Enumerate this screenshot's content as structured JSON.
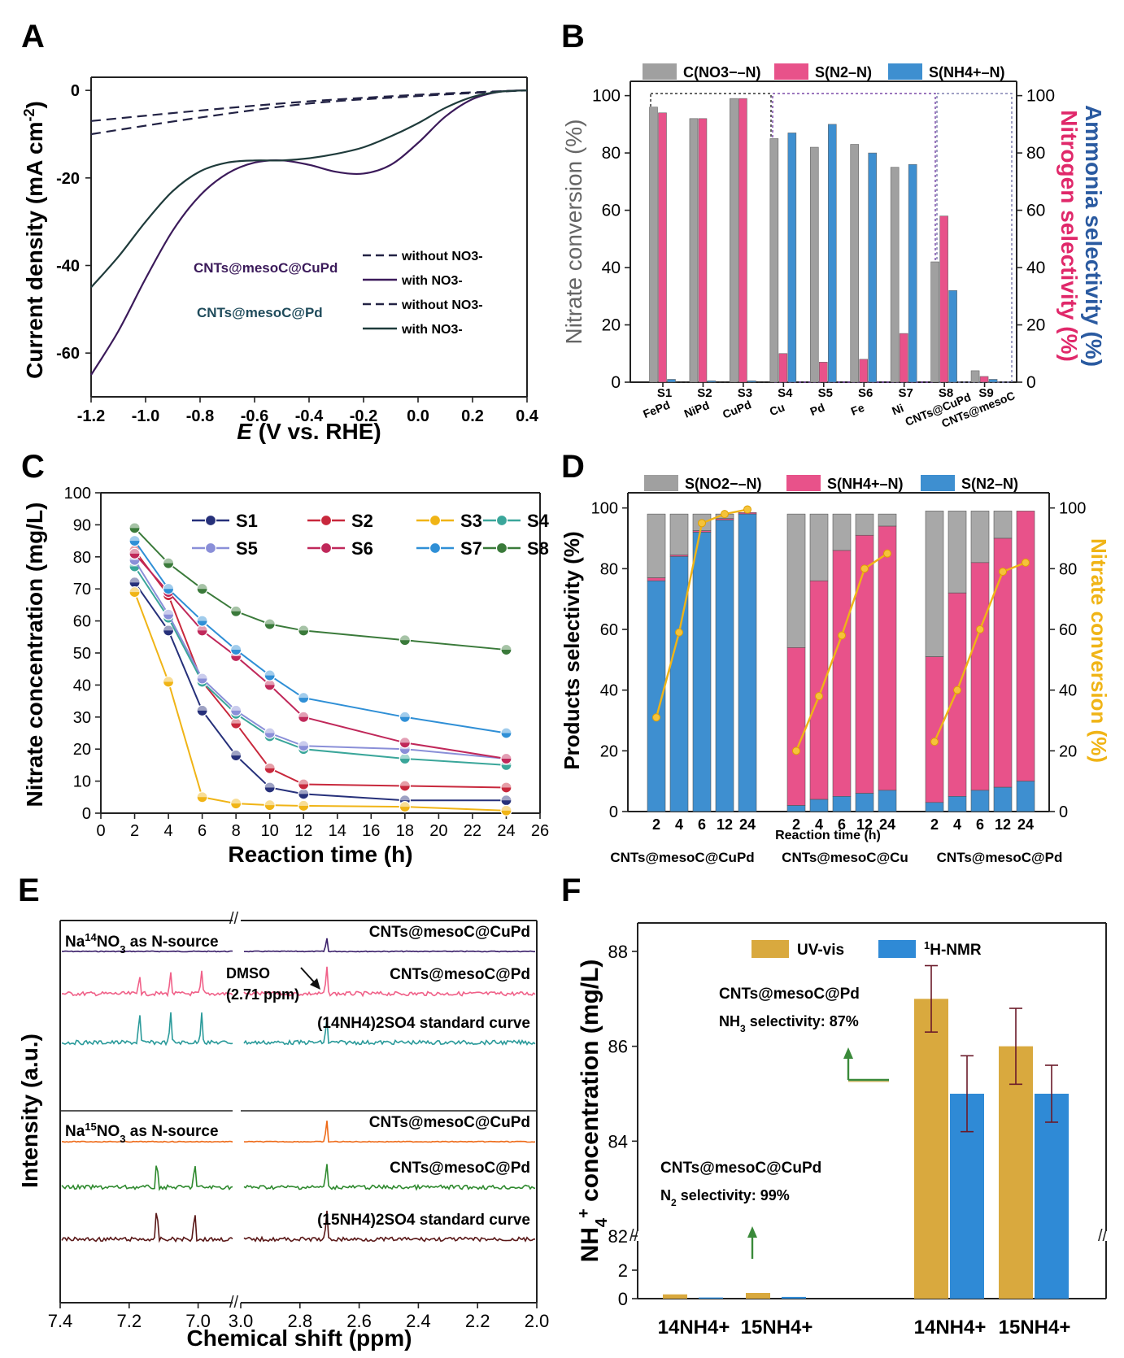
{
  "chart_data": [
    {
      "panel": "A",
      "type": "line",
      "xlabel": "E (V vs. RHE)",
      "ylabel": "Current density (mA cm-2)",
      "xlim": [
        -1.2,
        0.4
      ],
      "ylim": [
        -70,
        3
      ],
      "xticks": [
        "-1.2",
        "-1.0",
        "-0.8",
        "-0.6",
        "-0.4",
        "-0.2",
        "0.0",
        "0.2",
        "0.4"
      ],
      "yticks": [
        "0",
        "-20",
        "-40",
        "-60"
      ],
      "legend": {
        "cupd_label": "CNTs@mesoC@CuPd",
        "pd_label": "CNTs@mesoC@Pd",
        "without": "without NO3-",
        "with": "with NO3-"
      },
      "series": [
        {
          "name": "CuPd without NO3-",
          "color": "#222244",
          "dash": true,
          "x": [
            -1.2,
            -0.8,
            -0.4,
            0.0,
            0.3,
            0.4
          ],
          "y": [
            -7,
            -4.6,
            -2.5,
            -1.0,
            -0.2,
            0
          ]
        },
        {
          "name": "CuPd with NO3-",
          "color": "#3b1a5a",
          "dash": false,
          "x": [
            -1.2,
            -1.1,
            -1.0,
            -0.9,
            -0.8,
            -0.7,
            -0.6,
            -0.5,
            -0.4,
            -0.3,
            -0.2,
            -0.1,
            0.0,
            0.1,
            0.2,
            0.3,
            0.4
          ],
          "y": [
            -65,
            -55,
            -43,
            -32,
            -24,
            -19,
            -16.5,
            -16,
            -17,
            -18.6,
            -19,
            -17,
            -12,
            -6,
            -2,
            -0.3,
            0
          ]
        },
        {
          "name": "Pd without NO3-",
          "color": "#222244",
          "dash": true,
          "x": [
            -1.2,
            -0.8,
            -0.4,
            0.0,
            0.3,
            0.4
          ],
          "y": [
            -10,
            -6.2,
            -3.0,
            -1.3,
            -0.3,
            0
          ]
        },
        {
          "name": "Pd with NO3-",
          "color": "#1f3b3b",
          "dash": false,
          "x": [
            -1.2,
            -1.1,
            -1.0,
            -0.9,
            -0.8,
            -0.7,
            -0.6,
            -0.5,
            -0.4,
            -0.3,
            -0.2,
            -0.1,
            0.0,
            0.1,
            0.2,
            0.3,
            0.4
          ],
          "y": [
            -45,
            -38,
            -30,
            -23,
            -18.5,
            -16.5,
            -16,
            -16,
            -15.5,
            -14.5,
            -13,
            -10.5,
            -7.5,
            -4,
            -1.5,
            -0.3,
            0
          ]
        }
      ]
    },
    {
      "panel": "B",
      "type": "bar",
      "ylabel_left": "Nitrate conversion (%)",
      "ylabel_right_1": "Ammonia selectivity (%)",
      "ylabel_right_2": "Nitrogen selectivity (%)",
      "ylim": [
        0,
        105
      ],
      "yticks": [
        "0",
        "20",
        "40",
        "60",
        "80",
        "100"
      ],
      "legend": {
        "conversion": "C(NO3−–N)",
        "n2": "S(N2–N)",
        "nh4": "S(NH4+–N)"
      },
      "categories": [
        "S1",
        "S2",
        "S3",
        "S4",
        "S5",
        "S6",
        "S7",
        "S8",
        "S9"
      ],
      "sample_labels": [
        "FePd",
        "NiPd",
        "CuPd",
        "Cu",
        "Pd",
        "Fe",
        "Ni",
        "CNTs@CuPd",
        "CNTs@mesoC"
      ],
      "series": [
        {
          "name": "C(NO3−–N)",
          "color": "#a0a0a0",
          "values": [
            96,
            92,
            99,
            85,
            82,
            83,
            75,
            42,
            4
          ]
        },
        {
          "name": "S(N2–N)",
          "color": "#e8528a",
          "values": [
            94,
            92,
            99,
            10,
            7,
            8,
            17,
            58,
            2
          ]
        },
        {
          "name": "S(NH4+–N)",
          "color": "#3e8fd0",
          "values": [
            1,
            0.5,
            0.5,
            87,
            90,
            80,
            76,
            32,
            1
          ]
        }
      ]
    },
    {
      "panel": "C",
      "type": "line",
      "xlabel": "Reaction time (h)",
      "ylabel": "Nitrate concentration (mg/L)",
      "xlim": [
        0,
        26
      ],
      "ylim": [
        0,
        100
      ],
      "xticks": [
        "0",
        "2",
        "4",
        "6",
        "8",
        "10",
        "12",
        "14",
        "16",
        "18",
        "20",
        "22",
        "24",
        "26"
      ],
      "yticks": [
        "0",
        "10",
        "20",
        "30",
        "40",
        "50",
        "60",
        "70",
        "80",
        "90",
        "100"
      ],
      "x": [
        2,
        4,
        6,
        8,
        10,
        12,
        18,
        24
      ],
      "series": [
        {
          "name": "S1",
          "color": "#26307a",
          "values": [
            72,
            57,
            32,
            18,
            8,
            6,
            4,
            4
          ]
        },
        {
          "name": "S2",
          "color": "#c8283c",
          "values": [
            82,
            68,
            41,
            28,
            14,
            9,
            8.5,
            8
          ]
        },
        {
          "name": "S3",
          "color": "#f0b416",
          "values": [
            69,
            41,
            5,
            3,
            2.5,
            2.3,
            2,
            0.8
          ]
        },
        {
          "name": "S4",
          "color": "#3aa69a",
          "values": [
            77,
            61,
            41,
            31,
            24,
            20,
            17,
            15
          ]
        },
        {
          "name": "S5",
          "color": "#8a8fd8",
          "values": [
            79,
            62,
            42,
            32,
            25,
            21,
            20,
            17
          ]
        },
        {
          "name": "S6",
          "color": "#c0285a",
          "values": [
            81,
            69,
            57,
            49,
            40,
            30,
            22,
            17
          ]
        },
        {
          "name": "S7",
          "color": "#2f8fd6",
          "values": [
            85,
            70,
            60,
            51,
            43,
            36,
            30,
            25
          ]
        },
        {
          "name": "S8",
          "color": "#3a7a3a",
          "values": [
            89,
            78,
            70,
            63,
            59,
            57,
            54,
            51
          ]
        }
      ]
    },
    {
      "panel": "D",
      "type": "bar",
      "xlabel": "Reaction time (h)",
      "ylabel_left": "Products selectivity (%)",
      "ylabel_right": "Nitrate conversion (%)",
      "ylim": [
        0,
        105
      ],
      "yticks": [
        "0",
        "20",
        "40",
        "60",
        "80",
        "100"
      ],
      "legend": {
        "no2": "S(NO2−–N)",
        "nh4": "S(NH4+–N)",
        "n2": "S(N2–N)"
      },
      "time_labels": [
        "2",
        "4",
        "6",
        "12",
        "24"
      ],
      "groups": [
        {
          "label": "CNTs@mesoC@CuPd",
          "n2": [
            76,
            84,
            92,
            96,
            98
          ],
          "nh4": [
            1,
            0.5,
            0.5,
            0.5,
            0.5
          ],
          "total": [
            98,
            98,
            98,
            98,
            98
          ],
          "conversion": [
            31,
            59,
            95,
            98,
            99.5
          ]
        },
        {
          "label": "CNTs@mesoC@Cu",
          "n2": [
            2,
            4,
            5,
            6,
            7
          ],
          "nh4": [
            52,
            72,
            81,
            85,
            87
          ],
          "total": [
            98,
            98,
            98,
            98,
            98
          ],
          "conversion": [
            20,
            38,
            58,
            80,
            85
          ]
        },
        {
          "label": "CNTs@mesoC@Pd",
          "n2": [
            3,
            5,
            7,
            8,
            10
          ],
          "nh4": [
            48,
            67,
            75,
            82,
            89
          ],
          "total": [
            99,
            99,
            99,
            99,
            99
          ],
          "conversion": [
            23,
            40,
            60,
            79,
            82
          ]
        }
      ]
    },
    {
      "panel": "E",
      "type": "line",
      "xlabel": "Chemical shift (ppm)",
      "ylabel": "Intensity (a.u.)",
      "xticks_left": [
        "7.4",
        "7.2",
        "7.0"
      ],
      "xticks_right": [
        "3.0",
        "2.8",
        "2.6",
        "2.4",
        "2.2",
        "2.0"
      ],
      "top_source": "Na14NO3 as N-source",
      "bottom_source": "Na15NO3 as N-source",
      "dmso_label": "DMSO",
      "dmso_ppm": "(2.71 ppm)",
      "traces": [
        {
          "label": "CNTs@mesoC@CuPd",
          "color": "#3a1f6a",
          "peaks": []
        },
        {
          "label": "CNTs@mesoC@Pd",
          "color": "#f06088",
          "peaks": [
            7.17,
            7.08,
            6.99
          ]
        },
        {
          "label": "(14NH4)2SO4 standard curve",
          "color": "#2a9a9a",
          "peaks": [
            7.17,
            7.08,
            6.99
          ]
        },
        {
          "label": "CNTs@mesoC@CuPd",
          "color": "#ee6a18",
          "peaks": []
        },
        {
          "label": "CNTs@mesoC@Pd",
          "color": "#2f8a2f",
          "peaks": [
            7.12,
            7.01
          ]
        },
        {
          "label": "(15NH4)2SO4 standard curve",
          "color": "#5a1818",
          "peaks": [
            7.12,
            7.01
          ]
        }
      ]
    },
    {
      "panel": "F",
      "type": "bar",
      "ylabel": "NH4+ concentration (mg/L)",
      "legend": {
        "uv": "UV-vis",
        "nmr": "1H-NMR"
      },
      "categories": [
        "14NH4+",
        "15NH4+",
        "14NH4+",
        "15NH4+"
      ],
      "series": [
        {
          "name": "UV-vis",
          "color": "#d9a93e",
          "values": [
            0.3,
            0.4,
            87.0,
            86.0
          ],
          "errors": [
            0.2,
            0.2,
            0.7,
            0.8
          ]
        },
        {
          "name": "1H-NMR",
          "color": "#2f8ad6",
          "values": [
            0.08,
            0.12,
            85.0,
            85.0
          ],
          "errors": [
            0.05,
            0.05,
            0.8,
            0.6
          ]
        }
      ],
      "yticks_low": [
        "0",
        "2"
      ],
      "yticks_high": [
        "82",
        "84",
        "86",
        "88"
      ],
      "annotation_cupd_name": "CNTs@mesoC@CuPd",
      "annotation_cupd_value": "N2 selectivity: 99%",
      "annotation_pd_name": "CNTs@mesoC@Pd",
      "annotation_pd_value": "NH3 selectivity: 87%"
    }
  ]
}
